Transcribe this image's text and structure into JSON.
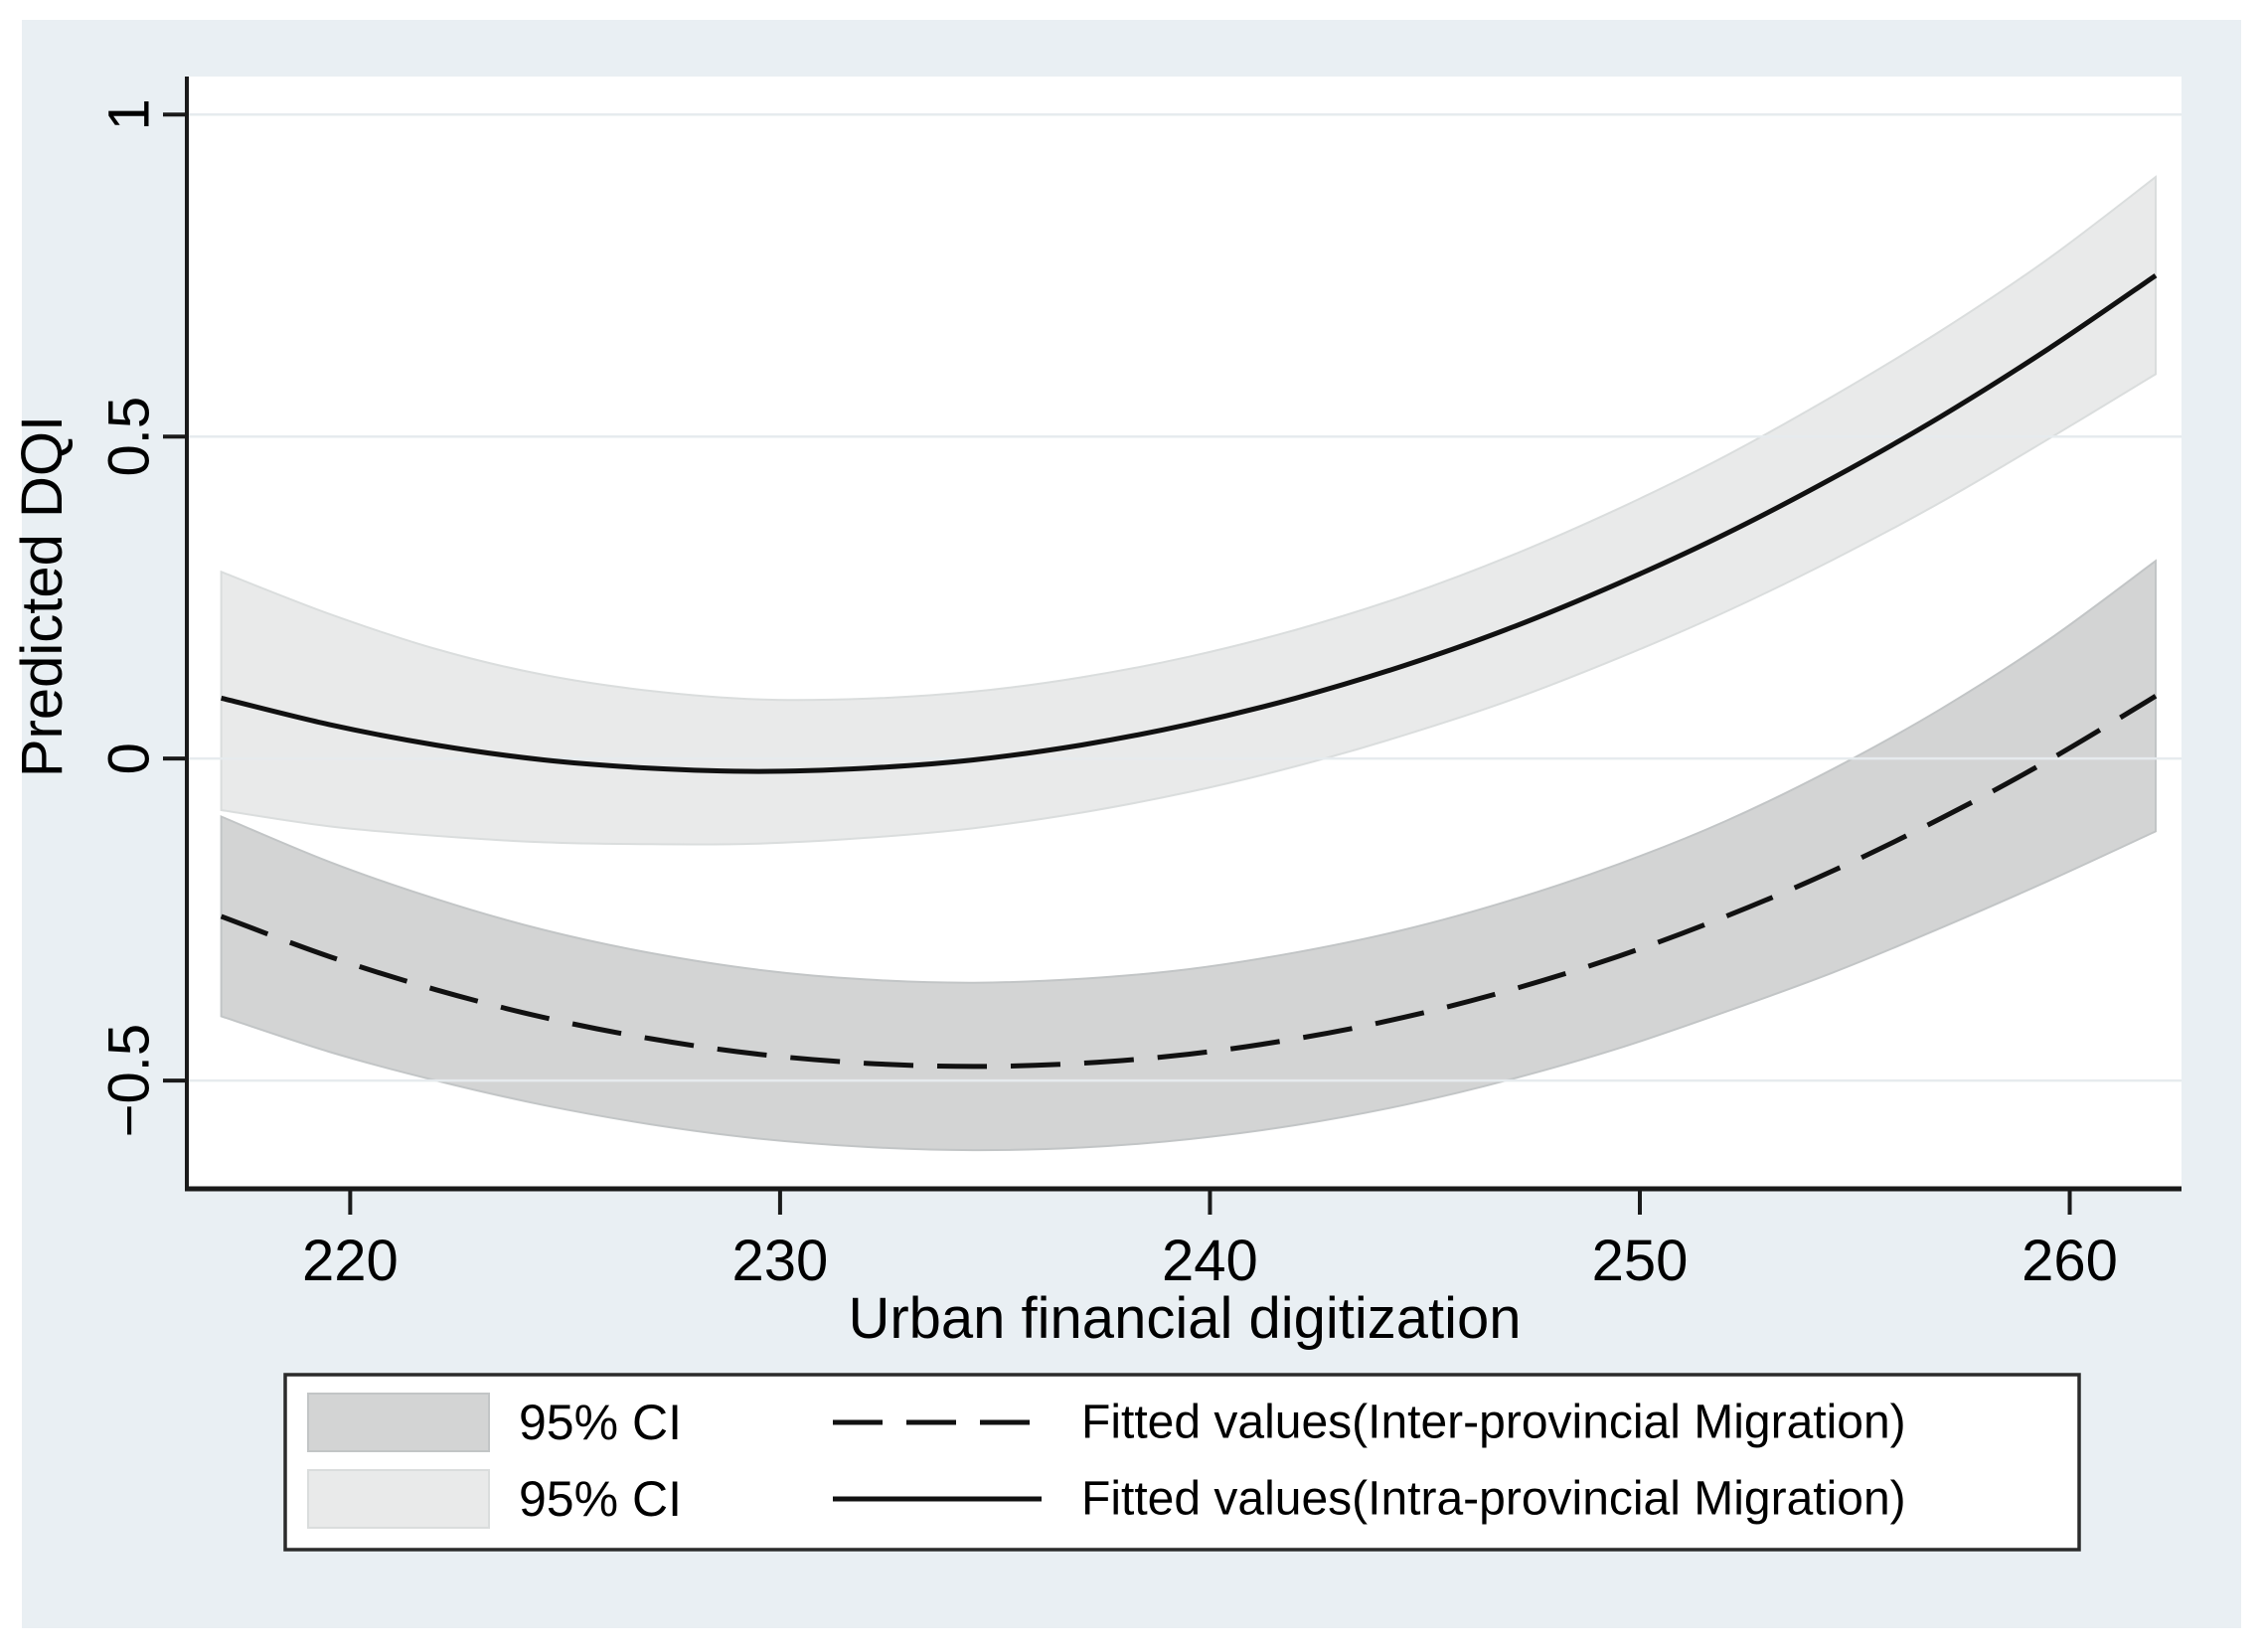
{
  "figure": {
    "page_background": "#ffffff",
    "figure_background": "#e9eff3",
    "plot_background": "#ffffff",
    "axis_color": "#1a1a1a",
    "grid_color": "#e6ebee",
    "legend_border_color": "#2b2b2b"
  },
  "chart_data": {
    "type": "line",
    "title": "",
    "xlabel": "Urban financial digitization",
    "ylabel": "Predicted DQI",
    "xlim": [
      216.2,
      262.6
    ],
    "ylim": [
      -0.668,
      1.059
    ],
    "grid": "horizontal gridlines at y tick values",
    "legend_position": "bottom",
    "xticks": [
      {
        "v": 220,
        "label": "220"
      },
      {
        "v": 230,
        "label": "230"
      },
      {
        "v": 240,
        "label": "240"
      },
      {
        "v": 250,
        "label": "250"
      },
      {
        "v": 260,
        "label": "260"
      }
    ],
    "yticks": [
      {
        "v": -0.5,
        "label": "−0.5"
      },
      {
        "v": 0,
        "label": "0"
      },
      {
        "v": 0.5,
        "label": "0.5"
      },
      {
        "v": 1,
        "label": "1"
      }
    ],
    "x": [
      217,
      219.5,
      222,
      224.5,
      227,
      229.5,
      232,
      234.5,
      237,
      239.5,
      242,
      244.5,
      247,
      249.5,
      252,
      254.5,
      257,
      259.5,
      262
    ],
    "series": [
      {
        "name": "Fitted values(Inter-provincial Migration)",
        "ci_label": "95% CI",
        "line_style": "dashed",
        "line_color": "#111111",
        "band_color": "#d3d4d4",
        "band_edge_color": "#c2c5c6",
        "fitted": [
          -0.245,
          -0.307,
          -0.359,
          -0.402,
          -0.435,
          -0.459,
          -0.473,
          -0.478,
          -0.473,
          -0.459,
          -0.435,
          -0.402,
          -0.359,
          -0.307,
          -0.245,
          -0.174,
          -0.093,
          -0.003,
          0.097
        ],
        "ci_lower": [
          -0.4,
          -0.455,
          -0.5,
          -0.538,
          -0.568,
          -0.59,
          -0.603,
          -0.608,
          -0.604,
          -0.591,
          -0.569,
          -0.538,
          -0.498,
          -0.45,
          -0.393,
          -0.332,
          -0.263,
          -0.19,
          -0.113
        ],
        "ci_upper": [
          -0.09,
          -0.16,
          -0.218,
          -0.266,
          -0.302,
          -0.328,
          -0.343,
          -0.348,
          -0.342,
          -0.327,
          -0.301,
          -0.266,
          -0.22,
          -0.164,
          -0.097,
          -0.016,
          0.077,
          0.184,
          0.307
        ]
      },
      {
        "name": "Fitted values(Intra-provincial Migration)",
        "ci_label": "95% CI",
        "line_style": "solid",
        "line_color": "#111111",
        "band_color": "#e9eaea",
        "band_edge_color": "#dadddd",
        "fitted": [
          0.094,
          0.053,
          0.021,
          -0.002,
          -0.015,
          -0.02,
          -0.015,
          -0.002,
          0.021,
          0.053,
          0.094,
          0.144,
          0.203,
          0.272,
          0.349,
          0.436,
          0.531,
          0.636,
          0.75
        ],
        "ci_lower": [
          -0.08,
          -0.105,
          -0.12,
          -0.13,
          -0.133,
          -0.132,
          -0.123,
          -0.108,
          -0.084,
          -0.052,
          -0.012,
          0.036,
          0.091,
          0.156,
          0.228,
          0.309,
          0.398,
          0.496,
          0.597
        ],
        "ci_upper": [
          0.29,
          0.225,
          0.17,
          0.13,
          0.105,
          0.092,
          0.093,
          0.104,
          0.126,
          0.158,
          0.2,
          0.252,
          0.315,
          0.388,
          0.47,
          0.563,
          0.664,
          0.776,
          0.903
        ]
      }
    ],
    "legend": {
      "rows": [
        {
          "ci_label": "95% CI",
          "series_index": 0
        },
        {
          "ci_label": "95% CI",
          "series_index": 1
        }
      ]
    }
  }
}
